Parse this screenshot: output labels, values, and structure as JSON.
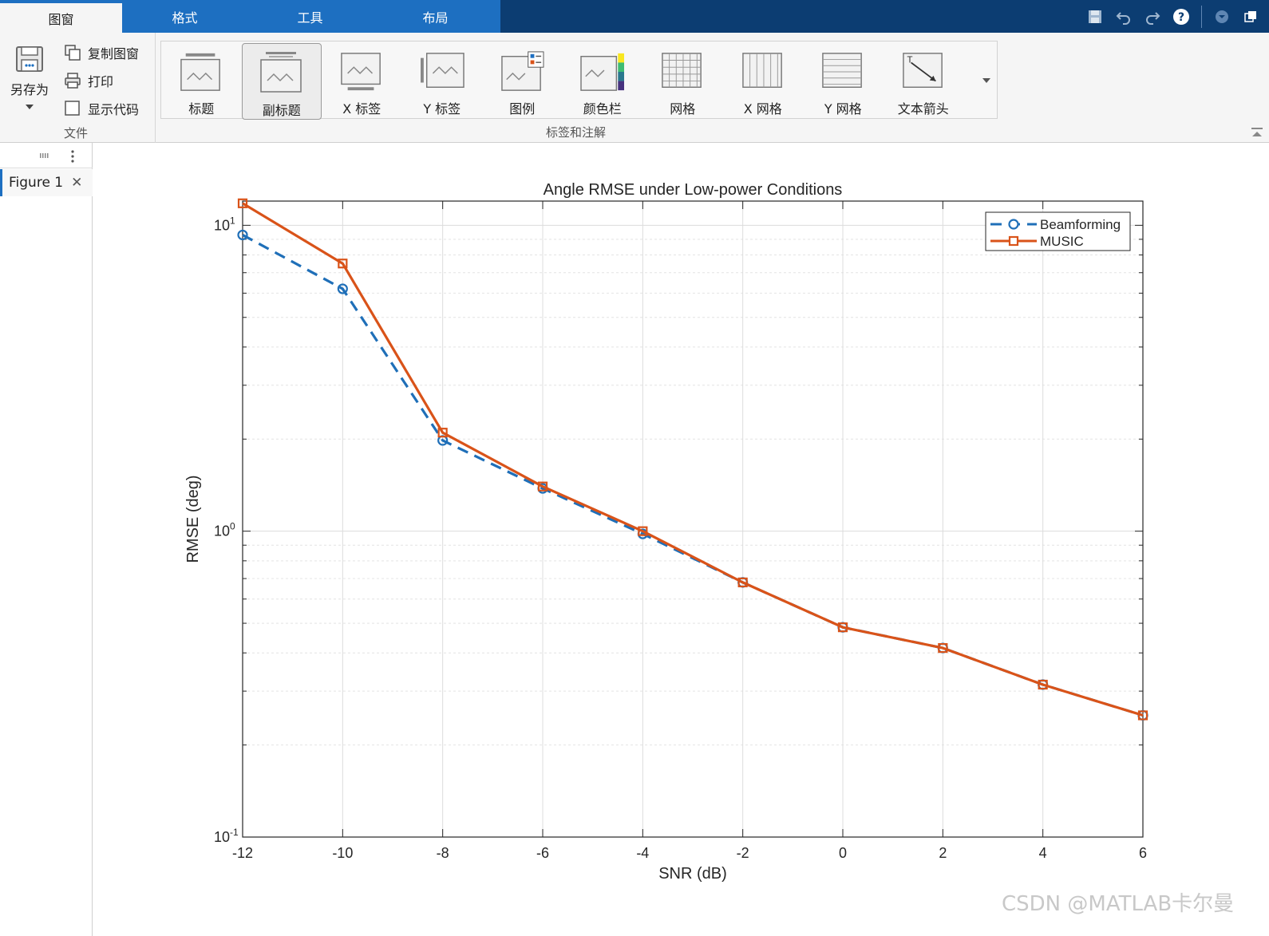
{
  "tabs": [
    "图窗",
    "格式",
    "工具",
    "布局"
  ],
  "file_section": {
    "save_as_label": "另存为",
    "copy_figure_label": "复制图窗",
    "print_label": "打印",
    "show_code_label": "显示代码",
    "title": "文件"
  },
  "annotation_section": {
    "title": "标签和注解",
    "items": [
      {
        "label": "标题",
        "icon": "title-icon"
      },
      {
        "label": "副标题",
        "icon": "subtitle-icon"
      },
      {
        "label": "X 标签",
        "icon": "xlabel-icon"
      },
      {
        "label": "Y 标签",
        "icon": "ylabel-icon"
      },
      {
        "label": "图例",
        "icon": "legend-icon"
      },
      {
        "label": "颜色栏",
        "icon": "colorbar-icon"
      },
      {
        "label": "网格",
        "icon": "grid-icon"
      },
      {
        "label": "X 网格",
        "icon": "xgrid-icon"
      },
      {
        "label": "Y 网格",
        "icon": "ygrid-icon"
      },
      {
        "label": "文本箭头",
        "icon": "text-arrow-icon"
      }
    ],
    "selected_index": 1
  },
  "document_tab": {
    "label": "Figure 1"
  },
  "watermark": "CSDN @MATLAB卡尔曼",
  "colors": {
    "accent": "#1d6fc1",
    "beamforming": "#1f6fb8",
    "music": "#d95319"
  },
  "chart_data": {
    "type": "line",
    "title": "Angle RMSE under Low-power Conditions",
    "xlabel": "SNR (dB)",
    "ylabel": "RMSE (deg)",
    "xlim": [
      -12,
      6
    ],
    "ylim": [
      0.1,
      12
    ],
    "y_scale": "log",
    "grid": true,
    "legend_position": "top-right",
    "x": [
      -12,
      -10,
      -8,
      -6,
      -4,
      -2,
      0,
      2,
      4,
      6
    ],
    "x_ticks": [
      "-12",
      "-10",
      "-8",
      "-6",
      "-4",
      "-2",
      "0",
      "2",
      "4",
      "6"
    ],
    "y_ticks": [
      {
        "value": 10,
        "base": "10",
        "exp": "1"
      },
      {
        "value": 1,
        "base": "10",
        "exp": "0"
      },
      {
        "value": 0.1,
        "base": "10",
        "exp": "-1"
      }
    ],
    "series": [
      {
        "name": "Beamforming",
        "style": "dashed",
        "marker": "circle",
        "color": "#1f6fb8",
        "values": [
          9.3,
          6.2,
          1.98,
          1.38,
          0.98,
          0.68,
          0.485,
          0.415,
          0.315,
          0.25
        ]
      },
      {
        "name": "MUSIC",
        "style": "solid",
        "marker": "square",
        "color": "#d95319",
        "values": [
          11.8,
          7.5,
          2.1,
          1.4,
          1.0,
          0.68,
          0.485,
          0.415,
          0.315,
          0.25
        ]
      }
    ]
  }
}
